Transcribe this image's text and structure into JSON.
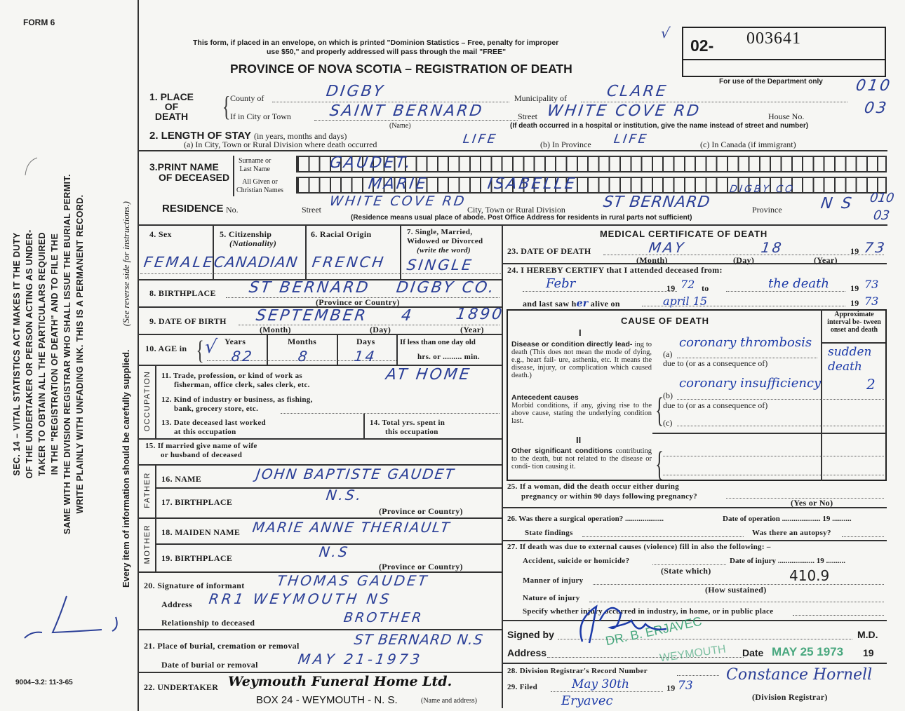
{
  "form_id": "FORM 6",
  "form_code": "9004–3.2: 11-3-65",
  "header": {
    "notice_1": "This form, if placed in an envelope, on which is printed \"Dominion Statistics – Free, penalty for improper",
    "notice_2": "use $50,\" and properly addressed will pass through the mail \"FREE\"",
    "title": "PROVINCE OF NOVA SCOTIA – REGISTRATION OF DEATH",
    "check_mark": "√",
    "reg_prefix": "02-",
    "reg_number": "003641",
    "dept_only": "For use of the Department only"
  },
  "sidebar": {
    "act_lines": [
      "SEC. 14 – VITAL STATISTICS ACT MAKES IT THE DUTY",
      "OF THE UNDERTAKER OR PERSON ACTING AS UNDER-",
      "TAKER TO OBTAIN ALL THE PARTICULARS REQUIRED",
      "IN THE \"REGISTRATION OF DEATH\" AND TO FILE THE",
      "SAME WITH THE DIVISION REGISTRAR WHO SHALL ISSUE THE BURIAL PERMIT.",
      "WRITE PLAINLY WITH UNFADING INK. THIS IS A PERMANENT RECORD."
    ],
    "every_item": "Every item of information should be carefully supplied.",
    "see_reverse": "(See reverse side for instructions.)"
  },
  "place": {
    "label_1": "1. PLACE",
    "label_2": "OF",
    "label_3": "DEATH",
    "county_label": "County of",
    "county": "DIGBY",
    "municipality_label": "Municipality of",
    "municipality": "CLARE",
    "muni_code": "010",
    "city_label": "If in City or Town",
    "city": "SAINT BERNARD",
    "street_label": "Street",
    "street": "WHITE COVE RD",
    "house_label": "House No.",
    "house_code": "03",
    "name_note": "(Name)",
    "hospital_note": "(If death occurred in a hospital or institution, give the name instead of street and number)"
  },
  "stay": {
    "label": "2. LENGTH OF STAY",
    "sub": "(in years, months and days)",
    "a_label": "(a) In City, Town or Rural Division where death occurred",
    "a": "LIFE",
    "b_label": "(b) In Province",
    "b": "LIFE",
    "c_label": "(c) In Canada (if immigrant)"
  },
  "name": {
    "label_1": "3.PRINT NAME",
    "label_2": "OF DECEASED",
    "surname_label_1": "Surname or",
    "surname_label_2": "Last Name",
    "given_label_1": "All Given or",
    "given_label_2": "Christian Names",
    "surname": "GAUDET.",
    "given_1": "MARIE",
    "given_2": "ISABELLE"
  },
  "residence": {
    "label": "RESIDENCE",
    "no_label": "No.",
    "street_label": "Street",
    "street": "WHITE COVE RD",
    "city_label": "City, Town or Rural Division",
    "city": "ST BERNARD",
    "county": "DIGBY CO",
    "province_label": "Province",
    "province": "N S",
    "code_1": "010",
    "code_2": "03",
    "note": "(Residence means usual place of abode. Post Office Address for residents in rural parts not sufficient)"
  },
  "personal": {
    "sex_label": "4. Sex",
    "sex": "FEMALE",
    "citizenship_label": "5. Citizenship",
    "citizenship_sub": "(Nationality)",
    "citizenship": "CANADIAN",
    "racial_label": "6. Racial Origin",
    "racial": "FRENCH",
    "marital_label_1": "7. Single, Married,",
    "marital_label_2": "Widowed or Divorced",
    "marital_label_3": "(write the word)",
    "marital": "SINGLE",
    "birthplace_label": "8. BIRTHPLACE",
    "birthplace_1": "ST BERNARD",
    "birthplace_2": "DIGBY CO.",
    "prov_country": "(Province or Country)",
    "dob_label": "9. DATE OF BIRTH",
    "dob_month": "SEPTEMBER",
    "dob_day": "4",
    "dob_year": "1890",
    "month_note": "(Month)",
    "day_note": "(Day)",
    "year_note": "(Year)",
    "age_label": "10. AGE in",
    "years_label": "Years",
    "months_label": "Months",
    "days_label": "Days",
    "less_label": "If less than one day old",
    "hrs_label": "hrs. or ......... min.",
    "age_years": "82",
    "age_months": "8",
    "age_days": "14",
    "age_check": "√"
  },
  "occupation": {
    "strip": "OCCUPATION",
    "q11_1": "11. Trade, profession, or kind of work as",
    "q11_2": "fisherman, office clerk, sales clerk, etc.",
    "q11": "AT HOME",
    "q12_1": "12. Kind of industry or business, as fishing,",
    "q12_2": "bank, grocery store, etc.",
    "q13_1": "13. Date deceased last worked",
    "q13_2": "at this occupation",
    "q14_1": "14. Total yrs. spent in",
    "q14_2": "this occupation"
  },
  "spouse": {
    "q15_1": "15. If married give name of wife",
    "q15_2": "or husband of deceased"
  },
  "father": {
    "strip": "FATHER",
    "name_label": "16. NAME",
    "name": "JOHN BAPTISTE GAUDET",
    "birthplace_label": "17. BIRTHPLACE",
    "birthplace": "N.S.",
    "note": "(Province or Country)"
  },
  "mother": {
    "strip": "MOTHER",
    "name_label": "18. MAIDEN NAME",
    "name": "MARIE ANNE THERIAULT",
    "birthplace_label": "19. BIRTHPLACE",
    "birthplace": "N.S",
    "note": "(Province or Country)"
  },
  "informant": {
    "sig_label": "20. Signature of informant",
    "sig": "THOMAS GAUDET",
    "address_label": "Address",
    "address": "RR1 WEYMOUTH NS",
    "relation_label": "Relationship to deceased",
    "relation": "BROTHER"
  },
  "burial": {
    "place_label": "21. Place of burial, cremation or removal",
    "place": "ST BERNARD N.S",
    "date_label": "Date of burial or removal",
    "date": "MAY 21-1973"
  },
  "undertaker": {
    "label": "22. UNDERTAKER",
    "name": "Weymouth Funeral Home Ltd.",
    "note": "(Name and address)",
    "address": "BOX 24 - WEYMOUTH - N. S."
  },
  "medical": {
    "title": "MEDICAL CERTIFICATE OF DEATH",
    "dod_label": "23. DATE OF DEATH",
    "dod_month": "MAY",
    "dod_day": "18",
    "dod_century": "19",
    "dod_year": "73",
    "certify_label": "24. I HEREBY CERTIFY that I attended deceased from:",
    "from": "Febr",
    "from_year": "72",
    "to_label": "to",
    "to": "the death",
    "to_year": "73",
    "century": "19",
    "last_saw_label": "and last saw h",
    "last_saw_her": "er",
    "alive_label": "alive on",
    "last_saw": "april 15",
    "last_year": "73"
  },
  "cause": {
    "title": "CAUSE OF DEATH",
    "interval_label": "Approximate interval be- tween onset and death",
    "part_1": "I",
    "direct_title": "Disease or condition directly lead-",
    "direct_text": "ing to death (This does not mean the mode of dying, e.g., heart fail- ure, asthenia, etc. It means the disease, injury, or complication which caused death.)",
    "a_label": "(a)",
    "due_to": "due to (or as a consequence of)",
    "b_label": "(b)",
    "c_label": "(c)",
    "antecedent_title": "Antecedent causes",
    "antecedent_text": "Morbid conditions, if any, giving rise to the above cause, stating the underlying condition last.",
    "part_2": "II",
    "other_title": "Other significant conditions",
    "other_text": "contributing to the death, but not related to the disease or condi- tion causing it.",
    "a": "coronary thrombosis",
    "a_interval": "sudden death",
    "b": "coronary insufficiency",
    "b_interval": "2"
  },
  "q25": {
    "line_1": "25. If a woman, did the death occur either during",
    "line_2": "pregnancy or within 90 days following pregnancy?",
    "note": "(Yes or No)"
  },
  "q26": {
    "label": "26. Was there a surgical operation? ....................",
    "date_label": "Date of operation .................... 19 ..........",
    "findings_label": "State findings",
    "autopsy_label": "Was there an autopsy?"
  },
  "q27": {
    "label": "27. If death was due to external causes (violence) fill in also the following: –",
    "accident_label": "Accident, suicide or homicide?",
    "date_label": "Date of injury ................... 19 ..........",
    "state_which": "(State which)",
    "manner_label": "Manner of injury",
    "manner_code": "410.9",
    "how": "(How sustained)",
    "nature_label": "Nature of injury",
    "specify_label": "Specify whether injury occurred in industry, in home, or in public place"
  },
  "signature": {
    "signed_label": "Signed by",
    "md": "M.D.",
    "address_label": "Address",
    "date_label": "Date",
    "century": "19",
    "stamp_name": "DR. B. ERJAVEC",
    "stamp_town": "WEYMOUTH",
    "stamp_date": "MAY 25 1973"
  },
  "registrar": {
    "q28": "28. Division Registrar's Record Number",
    "q29": "29. Filed",
    "filed": "May 30th",
    "century": "19",
    "year": "73",
    "signature": "Constance Hornell",
    "label": "(Division Registrar)",
    "doctor_note": "Eryavec"
  },
  "colors": {
    "ink_blue": "#2b3f97",
    "stamp_green": "#2a9a6a",
    "print": "#1d1d1d"
  }
}
